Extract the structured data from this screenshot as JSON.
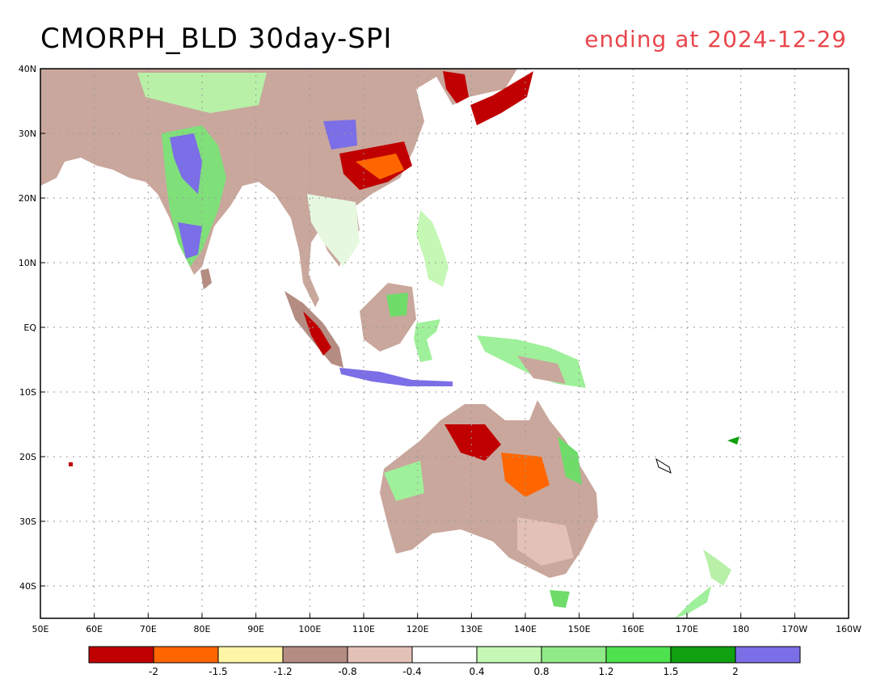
{
  "title": "CMORPH_BLD 30day-SPI",
  "subtitle": "ending at 2024-12-29",
  "map": {
    "lon_range": [
      50,
      200
    ],
    "lat_range": [
      -45,
      40
    ],
    "lon_ticks": [
      "50E",
      "60E",
      "70E",
      "80E",
      "90E",
      "100E",
      "110E",
      "120E",
      "130E",
      "140E",
      "150E",
      "160E",
      "170E",
      "180",
      "170W",
      "160W"
    ],
    "lat_ticks": [
      "40N",
      "30N",
      "20N",
      "10N",
      "EQ",
      "10S",
      "20S",
      "30S",
      "40S"
    ],
    "lat_values": [
      40,
      30,
      20,
      10,
      0,
      -10,
      -20,
      -30,
      -40
    ],
    "grid": true
  },
  "colorbar": {
    "colors": [
      "#c00000",
      "#ff6600",
      "#fff5a6",
      "#b48c82",
      "#e3c1b7",
      "#ffffff",
      "#c4f8b4",
      "#90ea88",
      "#4ee24e",
      "#10a010",
      "#7b6ee6"
    ],
    "labels": [
      "-2",
      "-1.5",
      "-1.2",
      "-0.8",
      "-0.4",
      "0.4",
      "0.8",
      "1.2",
      "1.5",
      "2"
    ]
  }
}
